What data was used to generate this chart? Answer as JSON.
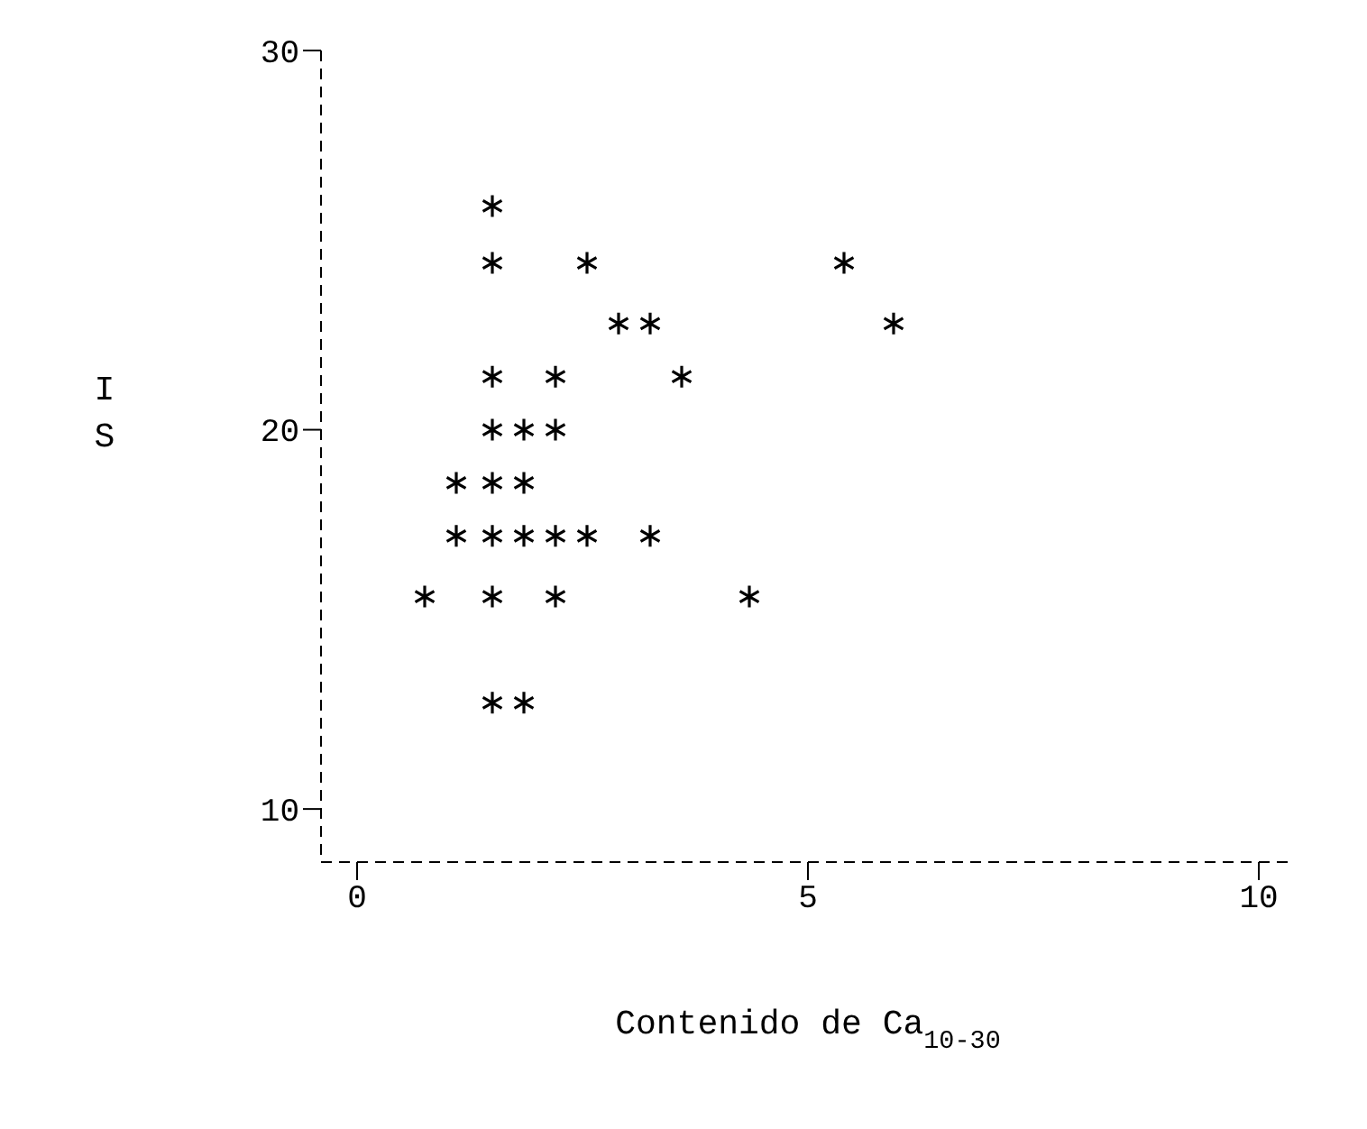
{
  "chart_data": {
    "type": "scatter",
    "xlabel": "Contenido de Ca$_{10-30}$",
    "ylabel": "IS",
    "x": [
      1.5,
      1.5,
      2.55,
      5.4,
      2.9,
      3.25,
      5.95,
      1.5,
      2.2,
      3.6,
      1.5,
      1.85,
      2.2,
      1.1,
      1.5,
      1.85,
      1.1,
      1.5,
      1.85,
      2.2,
      2.55,
      3.25,
      0.75,
      1.5,
      2.2,
      4.35,
      1.5,
      1.85
    ],
    "values": [
      25.9,
      24.4,
      24.4,
      24.4,
      22.8,
      22.8,
      22.8,
      21.4,
      21.4,
      21.4,
      20,
      20,
      20,
      18.6,
      18.6,
      18.6,
      17.2,
      17.2,
      17.2,
      17.2,
      17.2,
      17.2,
      15.6,
      15.6,
      15.6,
      15.6,
      12.8,
      12.8
    ],
    "color": "#000000",
    "marker": "cross",
    "line_style": "dashed",
    "grid": false,
    "xlim": [
      -0.4,
      10.4
    ],
    "xticks": [
      0,
      5,
      10
    ],
    "ylim": [
      8.6,
      30
    ],
    "yticks": [
      10,
      20,
      30
    ]
  }
}
